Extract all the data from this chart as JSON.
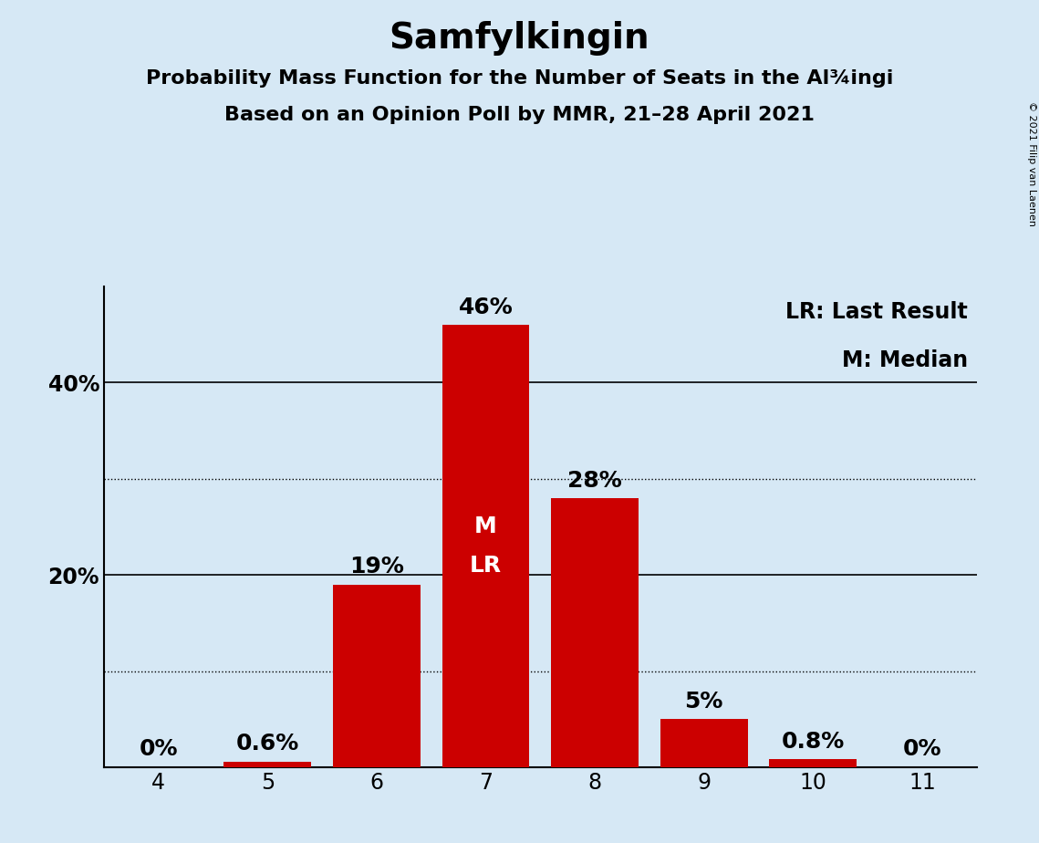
{
  "title": "Samfylkingin",
  "subtitle1": "Probability Mass Function for the Number of Seats in the Al¾ingi",
  "subtitle2": "Based on an Opinion Poll by MMR, 21–28 April 2021",
  "copyright": "© 2021 Filip van Laenen",
  "seats": [
    4,
    5,
    6,
    7,
    8,
    9,
    10,
    11
  ],
  "probabilities": [
    0.0,
    0.6,
    19.0,
    46.0,
    28.0,
    5.0,
    0.8,
    0.0
  ],
  "labels": [
    "0%",
    "0.6%",
    "19%",
    "46%",
    "28%",
    "5%",
    "0.8%",
    "0%"
  ],
  "bar_color": "#cc0000",
  "background_color": "#d6e8f5",
  "median_seat": 7,
  "last_result_seat": 7,
  "legend_lr": "LR: Last Result",
  "legend_m": "M: Median",
  "ylim": [
    0,
    50
  ],
  "solid_yticks": [
    20,
    40
  ],
  "dotted_yticks": [
    10,
    30
  ],
  "title_fontsize": 28,
  "subtitle_fontsize": 16,
  "tick_fontsize": 17,
  "legend_fontsize": 17,
  "annotation_fontsize": 18,
  "marker_fontsize": 18,
  "copyright_fontsize": 8
}
